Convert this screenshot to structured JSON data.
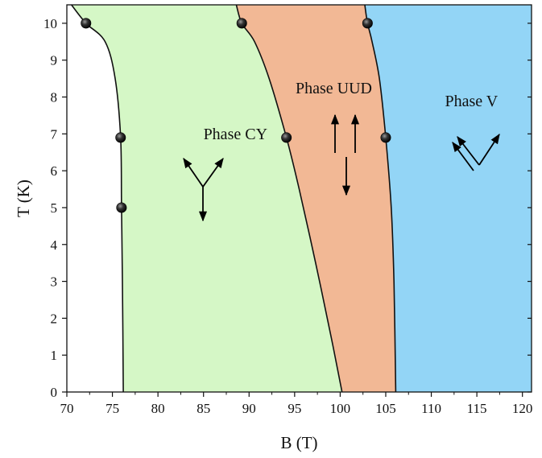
{
  "chart_data": {
    "type": "scatter",
    "title": "",
    "xlabel": "B (T)",
    "ylabel": "T (K)",
    "xlim": [
      70,
      121
    ],
    "ylim": [
      0,
      10.5
    ],
    "xticks": [
      70,
      75,
      80,
      85,
      90,
      95,
      100,
      105,
      110,
      115,
      120
    ],
    "yticks": [
      0,
      1,
      2,
      3,
      4,
      5,
      6,
      7,
      8,
      9,
      10
    ],
    "grid": false,
    "colors": {
      "phase_cy": "#d5f7c6",
      "phase_uud": "#f2b895",
      "phase_v": "#93d5f6",
      "boundary": "#111111",
      "marker": "#1a1a1a"
    },
    "phases": [
      {
        "name": "Phase CY",
        "color": "#d5f7c6",
        "spin_icon": "Y-shaped spin arrows"
      },
      {
        "name": "Phase UUD",
        "color": "#f2b895",
        "spin_icon": "up-up-down spin arrows"
      },
      {
        "name": "Phase V",
        "color": "#93d5f6",
        "spin_icon": "V-shaped spin arrows"
      }
    ],
    "boundaries": [
      {
        "between": "left-CY",
        "points": [
          [
            76.2,
            0
          ],
          [
            76.1,
            3
          ],
          [
            76.0,
            5
          ],
          [
            75.9,
            6.9
          ],
          [
            75.3,
            8.5
          ],
          [
            74.2,
            9.5
          ],
          [
            72.1,
            10
          ],
          [
            70.5,
            10.5
          ]
        ]
      },
      {
        "between": "CY-UUD",
        "points": [
          [
            100.2,
            0
          ],
          [
            99.0,
            1.5
          ],
          [
            97.3,
            3.5
          ],
          [
            95.5,
            5.5
          ],
          [
            94.1,
            6.9
          ],
          [
            92.2,
            8.5
          ],
          [
            90.6,
            9.5
          ],
          [
            89.2,
            10
          ],
          [
            88.6,
            10.5
          ]
        ]
      },
      {
        "between": "UUD-V",
        "points": [
          [
            106.1,
            0
          ],
          [
            105.9,
            3
          ],
          [
            105.6,
            5
          ],
          [
            105.0,
            6.9
          ],
          [
            104.3,
            8.5
          ],
          [
            103.5,
            9.5
          ],
          [
            103.0,
            10
          ],
          [
            102.7,
            10.5
          ]
        ]
      }
    ],
    "series": [
      {
        "points": [
          [
            72.1,
            10
          ],
          [
            75.9,
            6.9
          ],
          [
            76.0,
            5
          ]
        ]
      },
      {
        "points": [
          [
            89.2,
            10
          ],
          [
            94.1,
            6.9
          ]
        ]
      },
      {
        "points": [
          [
            103.0,
            10
          ],
          [
            105.0,
            6.9
          ]
        ]
      }
    ]
  }
}
